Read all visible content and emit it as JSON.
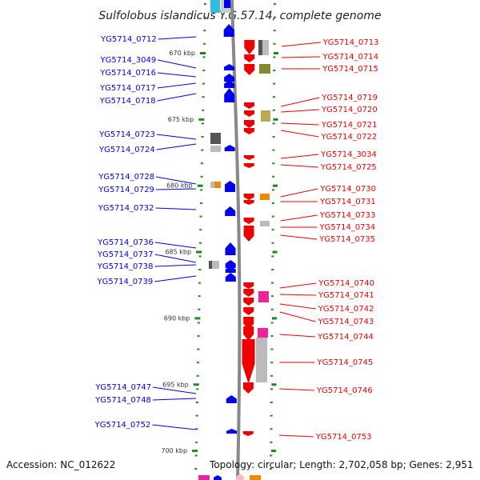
{
  "title": "Sulfolobus islandicus Y.G.57.14, complete genome",
  "footer": {
    "accession": "Accession: NC_012622",
    "summary": "Topology: circular; Length: 2,702,058 bp; Genes: 2,951"
  },
  "colors": {
    "forward": "#ee0000",
    "reverse": "#0000ee",
    "track_dots": "#1a8a1a",
    "backbone": "#888888",
    "magenta": "#ee2299",
    "orange": "#ee8800",
    "olive": "#888833",
    "khaki": "#bbaa55",
    "grey_dark": "#555555",
    "grey_light": "#bbbbbb"
  },
  "scale_ticks": [
    {
      "kbp": 670,
      "label": "670 kbp"
    },
    {
      "kbp": 675,
      "label": "675 kbp"
    },
    {
      "kbp": 680,
      "label": "680 kbp"
    },
    {
      "kbp": 685,
      "label": "685 kbp"
    },
    {
      "kbp": 690,
      "label": "690 kbp"
    },
    {
      "kbp": 695,
      "label": "695 kbp"
    },
    {
      "kbp": 700,
      "label": "700 kbp"
    }
  ],
  "reverse_genes": [
    {
      "id": "YG5714_0712",
      "kbp": 668.9
    },
    {
      "id": "YG5714_3049",
      "kbp": 670.9
    },
    {
      "id": "YG5714_0716",
      "kbp": 671.9
    },
    {
      "id": "YG5714_0717",
      "kbp": 673.0
    },
    {
      "id": "YG5714_0718",
      "kbp": 673.7
    },
    {
      "id": "YG5714_0723",
      "kbp": 676.2
    },
    {
      "id": "YG5714_0724",
      "kbp": 676.9
    },
    {
      "id": "YG5714_0728",
      "kbp": 679.7
    },
    {
      "id": "YG5714_0729",
      "kbp": 680.3
    },
    {
      "id": "YG5714_0732",
      "kbp": 681.9
    },
    {
      "id": "YG5714_0736",
      "kbp": 684.5
    },
    {
      "id": "YG5714_0737",
      "kbp": 685.4
    },
    {
      "id": "YG5714_0738",
      "kbp": 686.0
    },
    {
      "id": "YG5714_0739",
      "kbp": 686.9
    },
    {
      "id": "YG5714_0747",
      "kbp": 695.6
    },
    {
      "id": "YG5714_0748",
      "kbp": 696.5
    },
    {
      "id": "YG5714_0752",
      "kbp": 698.5
    }
  ],
  "forward_genes": [
    {
      "id": "YG5714_0713",
      "kbp": 669.0
    },
    {
      "id": "YG5714_0714",
      "kbp": 670.1
    },
    {
      "id": "YG5714_0715",
      "kbp": 670.9
    },
    {
      "id": "YG5714_0719",
      "kbp": 673.8
    },
    {
      "id": "YG5714_0720",
      "kbp": 674.6
    },
    {
      "id": "YG5714_0721",
      "kbp": 675.5
    },
    {
      "id": "YG5714_0722",
      "kbp": 676.3
    },
    {
      "id": "YG5714_3034",
      "kbp": 677.5
    },
    {
      "id": "YG5714_0725",
      "kbp": 678.3
    },
    {
      "id": "YG5714_0730",
      "kbp": 680.5
    },
    {
      "id": "YG5714_0731",
      "kbp": 681.2
    },
    {
      "id": "YG5714_0733",
      "kbp": 682.1
    },
    {
      "id": "YG5714_0734",
      "kbp": 682.9
    },
    {
      "id": "YG5714_0735",
      "kbp": 683.8
    },
    {
      "id": "YG5714_0740",
      "kbp": 687.2
    },
    {
      "id": "YG5714_0741",
      "kbp": 688.0
    },
    {
      "id": "YG5714_0742",
      "kbp": 688.8
    },
    {
      "id": "YG5714_0743",
      "kbp": 689.8
    },
    {
      "id": "YG5714_0744",
      "kbp": 690.9
    },
    {
      "id": "YG5714_0745",
      "kbp": 692.8
    },
    {
      "id": "YG5714_0746",
      "kbp": 694.8
    },
    {
      "id": "YG5714_0753",
      "kbp": 698.6
    }
  ]
}
